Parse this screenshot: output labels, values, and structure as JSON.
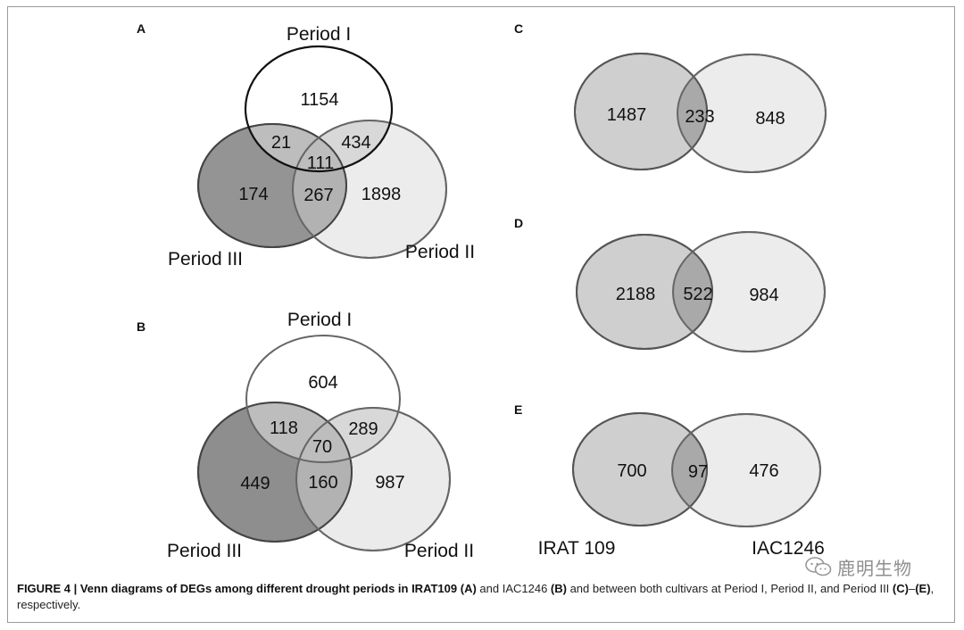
{
  "figure": {
    "panels": {
      "A": {
        "label": "A",
        "top": "Period I",
        "right": "Period II",
        "left": "Period III",
        "counts": {
          "only_top": "1154",
          "top_left": "21",
          "top_right": "434",
          "center": "111",
          "only_left": "174",
          "left_right": "267",
          "only_right": "1898"
        }
      },
      "B": {
        "label": "B",
        "top": "Period I",
        "right": "Period II",
        "left": "Period III",
        "counts": {
          "only_top": "604",
          "top_left": "118",
          "top_right": "289",
          "center": "70",
          "only_left": "449",
          "left_right": "160",
          "only_right": "987"
        }
      },
      "C": {
        "label": "C",
        "counts": {
          "left": "1487",
          "overlap": "233",
          "right": "848"
        }
      },
      "D": {
        "label": "D",
        "counts": {
          "left": "2188",
          "overlap": "522",
          "right": "984"
        }
      },
      "E": {
        "label": "E",
        "counts": {
          "left": "700",
          "overlap": "97",
          "right": "476"
        },
        "set_left": "IRAT 109",
        "set_right": "IAC1246"
      }
    },
    "caption": {
      "lead": "FIGURE 4 | Venn diagrams of DEGs among different drought periods in IRAT109",
      "ref_a": "(A)",
      "and1": " and IAC1246 ",
      "ref_b": "(B)",
      "rest": " and between both cultivars at Period I, Period II, and Period III ",
      "ref_c": "(C)",
      "ref_e": "(E)",
      "tail": ", respectively."
    },
    "watermark": "鹿明生物",
    "colors": {
      "dark": "#8c8c8c",
      "mid": "#cfcfcf",
      "light": "#ececec",
      "stroke": "#555555"
    }
  }
}
